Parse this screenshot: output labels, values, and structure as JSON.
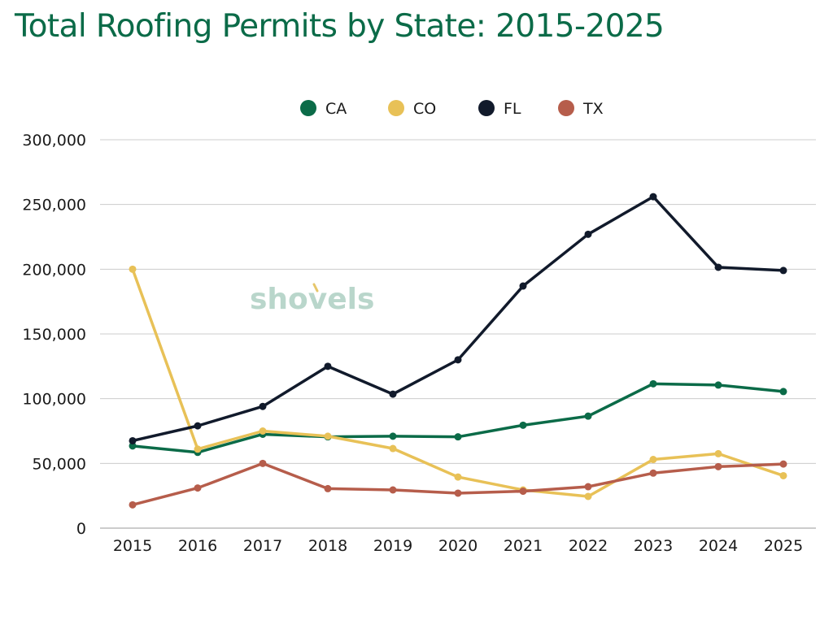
{
  "title": "Total Roofing Permits by State: 2015-2025",
  "watermark": "shovels",
  "colors": {
    "title": "#0b6b48",
    "grid": "#cccccc",
    "watermark": "#b9d6cb",
    "watermark_accent": "#e6c66a"
  },
  "chart_data": {
    "type": "line",
    "title": "Total Roofing Permits by State: 2015-2025",
    "xlabel": "",
    "ylabel": "",
    "categories": [
      "2015",
      "2016",
      "2017",
      "2018",
      "2019",
      "2020",
      "2021",
      "2022",
      "2023",
      "2024",
      "2025"
    ],
    "ylim": [
      0,
      300000
    ],
    "yticks": [
      0,
      50000,
      100000,
      150000,
      200000,
      250000,
      300000
    ],
    "ytick_labels": [
      "0",
      "50,000",
      "100,000",
      "150,000",
      "200,000",
      "250,000",
      "300,000"
    ],
    "grid": true,
    "legend_position": "top-center",
    "series": [
      {
        "name": "CA",
        "color": "#0b6b48",
        "values": [
          63500,
          58500,
          72500,
          70500,
          71000,
          70500,
          79500,
          86500,
          111500,
          110500,
          105500
        ]
      },
      {
        "name": "CO",
        "color": "#e8c157",
        "values": [
          200000,
          61000,
          75000,
          71000,
          61500,
          39500,
          29500,
          24500,
          53000,
          57500,
          40500
        ]
      },
      {
        "name": "FL",
        "color": "#111a2b",
        "values": [
          67500,
          79000,
          94000,
          125000,
          103500,
          130000,
          187000,
          227000,
          256000,
          201500,
          199000
        ]
      },
      {
        "name": "TX",
        "color": "#b65d4b",
        "values": [
          18000,
          31000,
          50000,
          30500,
          29500,
          27000,
          28500,
          32000,
          42500,
          47500,
          49500
        ]
      }
    ]
  }
}
